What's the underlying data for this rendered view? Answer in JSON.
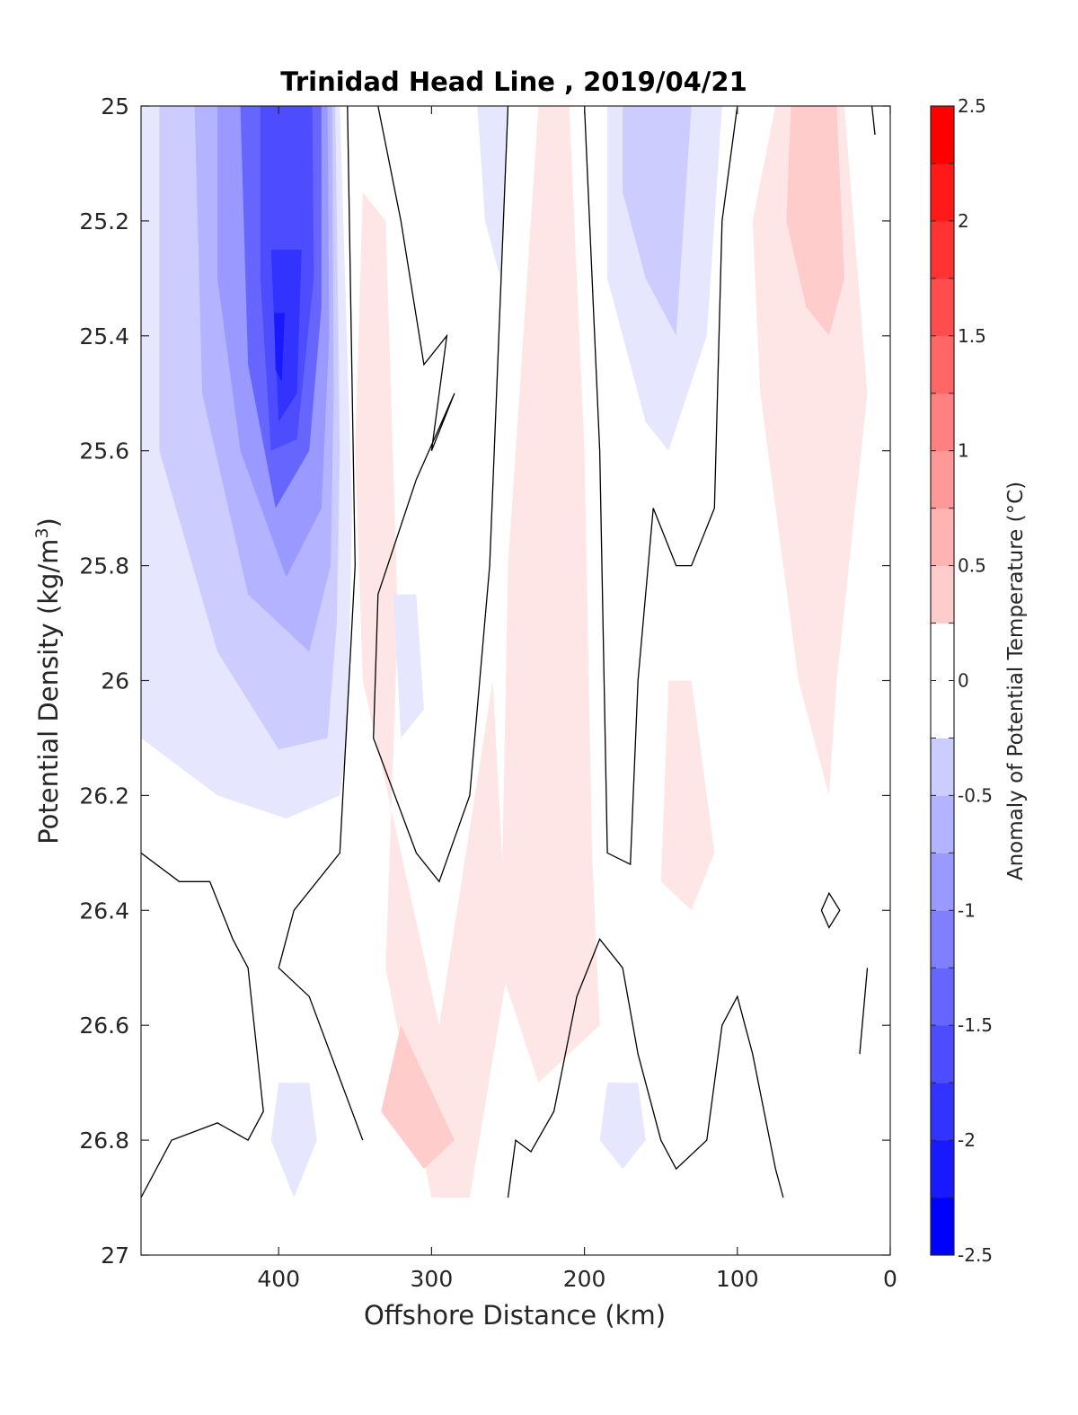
{
  "chart_data": {
    "type": "filled-contour",
    "title": "Trinidad Head Line , 2019/04/21",
    "xlabel": "Offshore Distance (km)",
    "ylabel_main": "Potential Density (kg/m",
    "ylabel_sup": "3",
    "ylabel_close": ")",
    "xlim": [
      490,
      0
    ],
    "ylim": [
      25,
      27
    ],
    "x_reversed": true,
    "y_reversed": true,
    "xticks": [
      "400",
      "300",
      "200",
      "100",
      "0"
    ],
    "xtick_values": [
      400,
      300,
      200,
      100,
      0
    ],
    "yticks": [
      "25",
      "25.2",
      "25.4",
      "25.6",
      "25.8",
      "26",
      "26.2",
      "26.4",
      "26.6",
      "26.8",
      "27"
    ],
    "ytick_values": [
      25,
      25.2,
      25.4,
      25.6,
      25.8,
      26,
      26.2,
      26.4,
      26.6,
      26.8,
      27
    ],
    "colorbar": {
      "label": "Anomaly of Potential Temperature (°C)",
      "range": [
        -2.5,
        2.5
      ],
      "step": 0.25,
      "tick_labels": [
        "-2.5",
        "-2",
        "-1.5",
        "-1",
        "-0.5",
        "0",
        "0.5",
        "1",
        "1.5",
        "2",
        "2.5"
      ],
      "tick_values": [
        -2.5,
        -2,
        -1.5,
        -1,
        -0.5,
        0,
        0.5,
        1,
        1.5,
        2,
        2.5
      ]
    },
    "anomaly_features": [
      {
        "x": [
          400,
          300,
          220,
          130,
          40,
          300,
          200,
          400,
          180,
          40
        ],
        "y": [
          25.4,
          25.4,
          25.3,
          25.2,
          25.3,
          26.75,
          26.2,
          26.75,
          26.78,
          26.4
        ],
        "value": [
          -2.25,
          0.25,
          0.3,
          -0.75,
          0.6,
          0.6,
          0.25,
          -0.3,
          -0.3,
          0
        ]
      }
    ],
    "zero_contour_present": true
  }
}
